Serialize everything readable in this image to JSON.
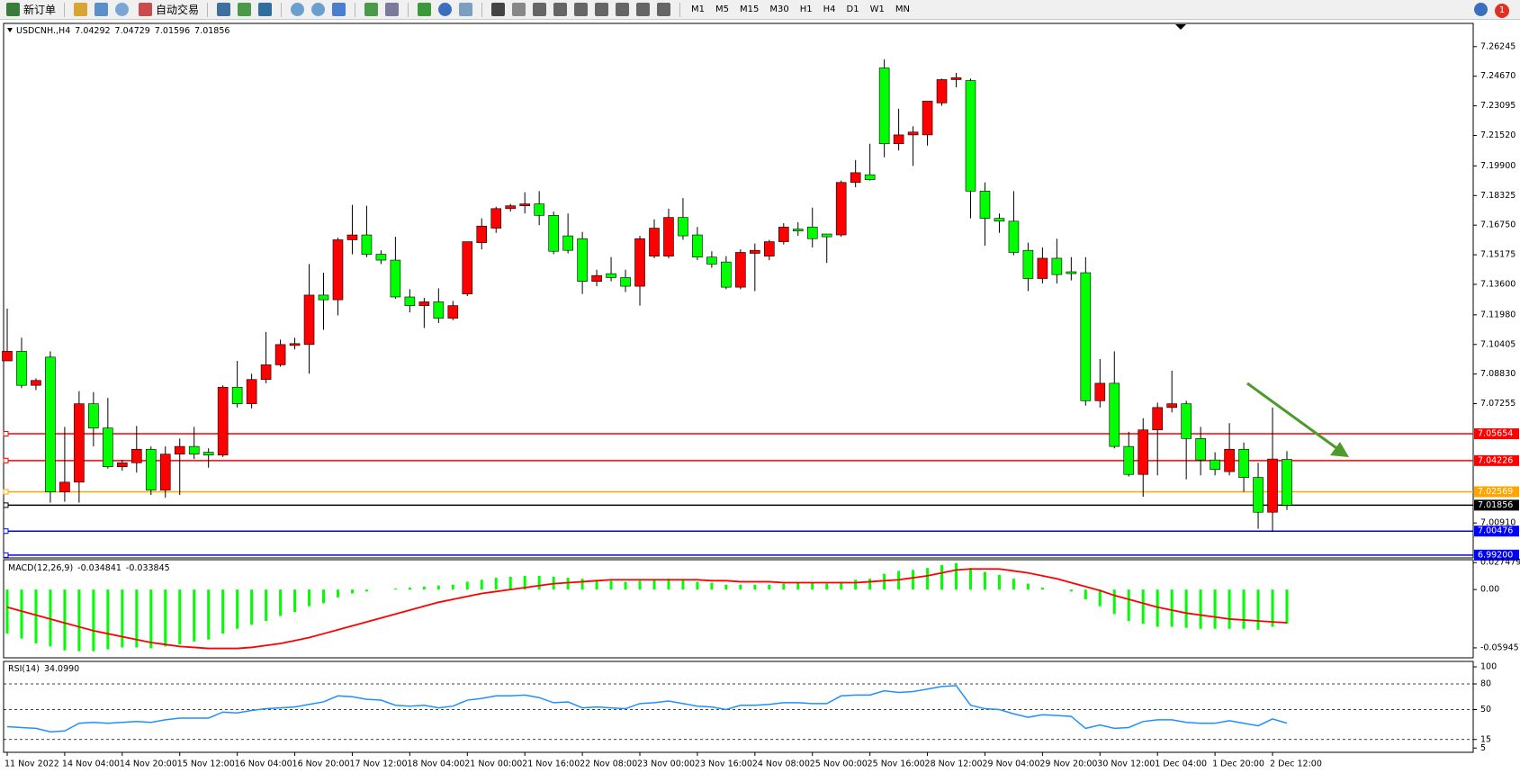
{
  "toolbar": {
    "new_order": "新订单",
    "auto_trading": "自动交易",
    "timeframes": [
      "M1",
      "M5",
      "M15",
      "M30",
      "H1",
      "H4",
      "D1",
      "W1",
      "MN"
    ],
    "alerts": 1
  },
  "chart_data": [
    {
      "type": "candlestick",
      "title": "USDCNH.,H4",
      "up_color": "#ff0000",
      "down_color": "#00ff00",
      "categories": [
        "11 Nov 2022",
        null,
        null,
        null,
        "14 Nov 04:00",
        null,
        null,
        null,
        "14 Nov 20:00",
        null,
        null,
        null,
        "15 Nov 12:00",
        null,
        null,
        null,
        "16 Nov 04:00",
        null,
        null,
        null,
        "16 Nov 20:00",
        null,
        null,
        null,
        "17 Nov 12:00",
        null,
        null,
        null,
        "18 Nov 04:00",
        null,
        null,
        null,
        "21 Nov 00:00",
        null,
        null,
        null,
        "21 Nov 16:00",
        null,
        null,
        null,
        "22 Nov 08:00",
        null,
        null,
        null,
        "23 Nov 00:00",
        null,
        null,
        null,
        "23 Nov 16:00",
        null,
        null,
        null,
        "24 Nov 08:00",
        null,
        null,
        null,
        "25 Nov 00:00",
        null,
        null,
        null,
        "25 Nov 16:00",
        null,
        null,
        null,
        "28 Nov 12:00",
        null,
        null,
        null,
        "29 Nov 04:00",
        null,
        null,
        null,
        "29 Nov 20:00",
        null,
        null,
        null,
        "30 Nov 12:00",
        null,
        null,
        null,
        "1 Dec 04:00",
        null,
        null,
        null,
        "1 Dec 20:00",
        null,
        null,
        null,
        "2 Dec 12:00",
        null
      ],
      "candles": [
        [
          7.0953,
          7.1231,
          7.0953,
          7.1004
        ],
        [
          7.1004,
          7.1076,
          7.0808,
          7.0823
        ],
        [
          7.0823,
          7.086,
          7.0798,
          7.0849
        ],
        [
          7.0973,
          7.1004,
          7.0199,
          7.0256
        ],
        [
          7.0256,
          7.0602,
          7.0204,
          7.0308
        ],
        [
          7.0308,
          7.0792,
          7.0199,
          7.0725
        ],
        [
          7.0725,
          7.0787,
          7.0498,
          7.0596
        ],
        [
          7.0596,
          7.0756,
          7.038,
          7.039
        ],
        [
          7.039,
          7.0426,
          7.0369,
          7.0411
        ],
        [
          7.0411,
          7.0607,
          7.0359,
          7.0483
        ],
        [
          7.0483,
          7.0498,
          7.024,
          7.0266
        ],
        [
          7.0266,
          7.0498,
          7.0225,
          7.0457
        ],
        [
          7.0457,
          7.054,
          7.024,
          7.0498
        ],
        [
          7.0498,
          7.0602,
          7.0431,
          7.0457
        ],
        [
          7.0467,
          7.0488,
          7.0385,
          7.0452
        ],
        [
          7.0452,
          7.0823,
          7.0442,
          7.0813
        ],
        [
          7.0813,
          7.0953,
          7.0705,
          7.0725
        ],
        [
          7.0725,
          7.0885,
          7.07,
          7.0854
        ],
        [
          7.0854,
          7.1107,
          7.0834,
          7.0932
        ],
        [
          7.0932,
          7.1066,
          7.0922,
          7.104
        ],
        [
          7.1035,
          7.1076,
          7.1014,
          7.1045
        ],
        [
          7.104,
          7.1468,
          7.0885,
          7.1303
        ],
        [
          7.1303,
          7.1422,
          7.1118,
          7.1278
        ],
        [
          7.1278,
          7.1608,
          7.1195,
          7.1597
        ],
        [
          7.1597,
          7.1783,
          7.152,
          7.1623
        ],
        [
          7.1623,
          7.1778,
          7.1505,
          7.152
        ],
        [
          7.152,
          7.1541,
          7.1468,
          7.1489
        ],
        [
          7.1489,
          7.1613,
          7.1283,
          7.1293
        ],
        [
          7.1293,
          7.1334,
          7.1211,
          7.1247
        ],
        [
          7.1247,
          7.1288,
          7.1128,
          7.1267
        ],
        [
          7.1267,
          7.1339,
          7.1154,
          7.118
        ],
        [
          7.118,
          7.1272,
          7.1169,
          7.1247
        ],
        [
          7.1309,
          7.1587,
          7.1298,
          7.1587
        ],
        [
          7.1582,
          7.1711,
          7.1546,
          7.167
        ],
        [
          7.1659,
          7.1773,
          7.1634,
          7.1763
        ],
        [
          7.1763,
          7.1788,
          7.1747,
          7.1778
        ],
        [
          7.1778,
          7.185,
          7.1737,
          7.1788
        ],
        [
          7.1788,
          7.1856,
          7.1675,
          7.1727
        ],
        [
          7.1727,
          7.1747,
          7.152,
          7.1536
        ],
        [
          7.1618,
          7.1737,
          7.1525,
          7.1541
        ],
        [
          7.1603,
          7.1639,
          7.1309,
          7.1376
        ],
        [
          7.1376,
          7.1438,
          7.135,
          7.1407
        ],
        [
          7.1417,
          7.1505,
          7.1376,
          7.1396
        ],
        [
          7.1396,
          7.1438,
          7.1319,
          7.135
        ],
        [
          7.135,
          7.1618,
          7.1247,
          7.1603
        ],
        [
          7.151,
          7.1706,
          7.1499,
          7.1659
        ],
        [
          7.151,
          7.1763,
          7.1499,
          7.1716
        ],
        [
          7.1716,
          7.1819,
          7.1597,
          7.1618
        ],
        [
          7.1623,
          7.1665,
          7.1489,
          7.1505
        ],
        [
          7.1505,
          7.1536,
          7.1448,
          7.1468
        ],
        [
          7.1479,
          7.151,
          7.1334,
          7.1345
        ],
        [
          7.1345,
          7.1546,
          7.1334,
          7.153
        ],
        [
          7.1525,
          7.1577,
          7.1324,
          7.1541
        ],
        [
          7.151,
          7.1597,
          7.1489,
          7.1587
        ],
        [
          7.1587,
          7.1685,
          7.1572,
          7.1665
        ],
        [
          7.1654,
          7.169,
          7.1618,
          7.1644
        ],
        [
          7.1665,
          7.1768,
          7.1556,
          7.1603
        ],
        [
          7.1628,
          7.1628,
          7.1474,
          7.1613
        ],
        [
          7.1623,
          7.1912,
          7.1613,
          7.1902
        ],
        [
          7.1902,
          7.2021,
          7.1876,
          7.1954
        ],
        [
          7.1943,
          7.2108,
          7.1912,
          7.1917
        ],
        [
          7.2511,
          7.2557,
          7.2036,
          7.2108
        ],
        [
          7.2108,
          7.2294,
          7.2072,
          7.2155
        ],
        [
          7.2155,
          7.2201,
          7.199,
          7.217
        ],
        [
          7.2155,
          7.2335,
          7.2098,
          7.2335
        ],
        [
          7.2325,
          7.2454,
          7.231,
          7.2449
        ],
        [
          7.2449,
          7.2485,
          7.2408,
          7.2459
        ],
        [
          7.2444,
          7.2454,
          7.1711,
          7.1856
        ],
        [
          7.1856,
          7.1902,
          7.1566,
          7.1711
        ],
        [
          7.1711,
          7.1737,
          7.1634,
          7.1696
        ],
        [
          7.1696,
          7.1856,
          7.1515,
          7.153
        ],
        [
          7.1541,
          7.1582,
          7.1324,
          7.1391
        ],
        [
          7.1391,
          7.1556,
          7.1365,
          7.1499
        ],
        [
          7.1499,
          7.1603,
          7.1365,
          7.1412
        ],
        [
          7.1427,
          7.1505,
          7.1381,
          7.1417
        ],
        [
          7.1422,
          7.1505,
          7.0715,
          7.0741
        ],
        [
          7.0741,
          7.0963,
          7.0705,
          7.0834
        ],
        [
          7.0834,
          7.1004,
          7.0488,
          7.0498
        ],
        [
          7.0498,
          7.0576,
          7.0338,
          7.0349
        ],
        [
          7.0349,
          7.0648,
          7.023,
          7.0586
        ],
        [
          7.0586,
          7.0731,
          7.0344,
          7.0705
        ],
        [
          7.0705,
          7.0901,
          7.0679,
          7.0725
        ],
        [
          7.0725,
          7.0741,
          7.0323,
          7.054
        ],
        [
          7.054,
          7.0602,
          7.0344,
          7.0426
        ],
        [
          7.0426,
          7.0467,
          7.0344,
          7.0375
        ],
        [
          7.0364,
          7.0622,
          7.0344,
          7.0483
        ],
        [
          7.0483,
          7.0519,
          7.0256,
          7.0333
        ],
        [
          7.0333,
          7.0411,
          7.006,
          7.0148
        ],
        [
          7.0148,
          7.0705,
          7.0044,
          7.0431
        ],
        [
          7.04292,
          7.04729,
          7.01596,
          7.01856
        ]
      ],
      "ylim": [
        6.9905,
        7.2748
      ],
      "yticks": [
        7.26245,
        {
          "value": 7.2467,
          "label": "7.24670"
        },
        7.23095,
        {
          "value": 7.2152,
          "label": "7.21520"
        },
        {
          "value": 7.199,
          "label": "7.19900"
        },
        7.18325,
        {
          "value": 7.1675,
          "label": "7.16750"
        },
        7.15175,
        {
          "value": 7.136,
          "label": "7.13600"
        },
        {
          "value": 7.1198,
          "label": "7.11980"
        },
        7.10405,
        {
          "value": 7.0883,
          "label": "7.08830"
        },
        7.07255,
        {
          "value": 7.0091,
          "label": "7.00910"
        }
      ],
      "levels": [
        {
          "value": 7.05654,
          "color": "#ff0000"
        },
        {
          "value": 7.04226,
          "color": "#ff0000"
        },
        {
          "value": 7.02569,
          "color": "#ffa500"
        },
        {
          "value": 7.01856,
          "color": "#000000"
        },
        {
          "value": 7.00476,
          "color": "#0000ff"
        },
        {
          "value": 6.992,
          "label": "6.99200",
          "color": "#0000ff"
        }
      ]
    },
    {
      "type": "macd",
      "title": "MACD(12,26,9)",
      "series": [
        {
          "color": "#00ff00",
          "values": [
            -0.045,
            -0.05,
            -0.055,
            -0.058,
            -0.062,
            -0.063,
            -0.063,
            -0.061,
            -0.059,
            -0.059,
            -0.06,
            -0.058,
            -0.056,
            -0.053,
            -0.051,
            -0.045,
            -0.04,
            -0.036,
            -0.032,
            -0.027,
            -0.023,
            -0.017,
            -0.014,
            -0.008,
            -0.004,
            -0.002,
            0.0,
            0.001,
            0.002,
            0.003,
            0.004,
            0.005,
            0.008,
            0.01,
            0.012,
            0.013,
            0.014,
            0.014,
            0.013,
            0.012,
            0.011,
            0.01,
            0.009,
            0.008,
            0.009,
            0.01,
            0.011,
            0.01,
            0.008,
            0.007,
            0.005,
            0.005,
            0.005,
            0.005,
            0.006,
            0.007,
            0.007,
            0.006,
            0.008,
            0.01,
            0.011,
            0.016,
            0.019,
            0.02,
            0.022,
            0.025,
            0.027,
            0.022,
            0.018,
            0.015,
            0.011,
            0.006,
            0.002,
            0.0,
            -0.002,
            -0.01,
            -0.017,
            -0.025,
            -0.032,
            -0.035,
            -0.038,
            -0.038,
            -0.039,
            -0.04,
            -0.04,
            -0.04,
            -0.04,
            -0.041,
            -0.038,
            -0.034841
          ]
        },
        {
          "color": "#ff0000",
          "values": [
            -0.018,
            -0.022,
            -0.026,
            -0.03,
            -0.034,
            -0.038,
            -0.042,
            -0.045,
            -0.048,
            -0.051,
            -0.054,
            -0.056,
            -0.058,
            -0.059,
            -0.06,
            -0.06,
            -0.06,
            -0.059,
            -0.057,
            -0.055,
            -0.052,
            -0.049,
            -0.045,
            -0.041,
            -0.037,
            -0.033,
            -0.029,
            -0.025,
            -0.021,
            -0.017,
            -0.013,
            -0.01,
            -0.007,
            -0.004,
            -0.002,
            0.0,
            0.002,
            0.004,
            0.006,
            0.007,
            0.008,
            0.009,
            0.01,
            0.01,
            0.01,
            0.01,
            0.01,
            0.01,
            0.01,
            0.009,
            0.009,
            0.008,
            0.008,
            0.008,
            0.007,
            0.007,
            0.007,
            0.007,
            0.007,
            0.007,
            0.008,
            0.009,
            0.01,
            0.012,
            0.014,
            0.017,
            0.02,
            0.021,
            0.021,
            0.021,
            0.019,
            0.017,
            0.014,
            0.011,
            0.007,
            0.003,
            -0.001,
            -0.006,
            -0.01,
            -0.014,
            -0.018,
            -0.021,
            -0.024,
            -0.026,
            -0.028,
            -0.03,
            -0.031,
            -0.032,
            -0.033,
            -0.033845
          ]
        }
      ],
      "ylim": [
        -0.0696,
        0.0304
      ],
      "yticks": [
        0.027479,
        {
          "value": 0,
          "label": "0.00"
        },
        -0.059451
      ]
    },
    {
      "type": "line",
      "title": "RSI(14)",
      "color": "#1e90ff",
      "values": [
        30,
        29,
        28,
        24,
        25,
        34,
        35,
        34,
        35,
        36,
        35,
        38,
        40,
        40,
        40,
        47,
        46,
        49,
        51,
        52,
        53,
        56,
        59,
        66,
        65,
        62,
        61,
        55,
        54,
        55,
        52,
        54,
        61,
        63,
        66,
        66,
        67,
        64,
        58,
        59,
        52,
        53,
        52,
        51,
        57,
        58,
        60,
        57,
        54,
        53,
        50,
        55,
        55,
        56,
        58,
        58,
        57,
        57,
        66,
        67,
        67,
        72,
        70,
        71,
        74,
        77,
        78,
        55,
        51,
        50,
        45,
        41,
        44,
        43,
        42,
        28,
        32,
        28,
        29,
        36,
        38,
        38,
        35,
        34,
        34,
        37,
        34,
        31,
        39,
        34.099
      ],
      "value_labels": [
        null,
        null,
        null,
        null,
        null,
        null,
        null,
        null,
        null,
        null,
        null,
        null,
        null,
        null,
        null,
        null,
        null,
        null,
        null,
        null,
        null,
        null,
        null,
        null,
        null,
        null,
        null,
        null,
        null,
        null,
        null,
        null,
        null,
        null,
        null,
        null,
        null,
        null,
        null,
        null,
        null,
        null,
        null,
        null,
        null,
        null,
        null,
        null,
        null,
        null,
        null,
        null,
        null,
        null,
        null,
        null,
        null,
        null,
        null,
        null,
        null,
        null,
        null,
        null,
        null,
        null,
        null,
        null,
        null,
        null,
        null,
        null,
        null,
        null,
        null,
        null,
        null,
        null,
        null,
        null,
        null,
        null,
        null,
        null,
        null,
        null,
        null,
        null,
        null,
        "34.0990"
      ],
      "ylim": [
        0,
        100
      ],
      "yticks": [
        100,
        80,
        50,
        15,
        5
      ],
      "levels": [
        80,
        50,
        15
      ]
    }
  ]
}
